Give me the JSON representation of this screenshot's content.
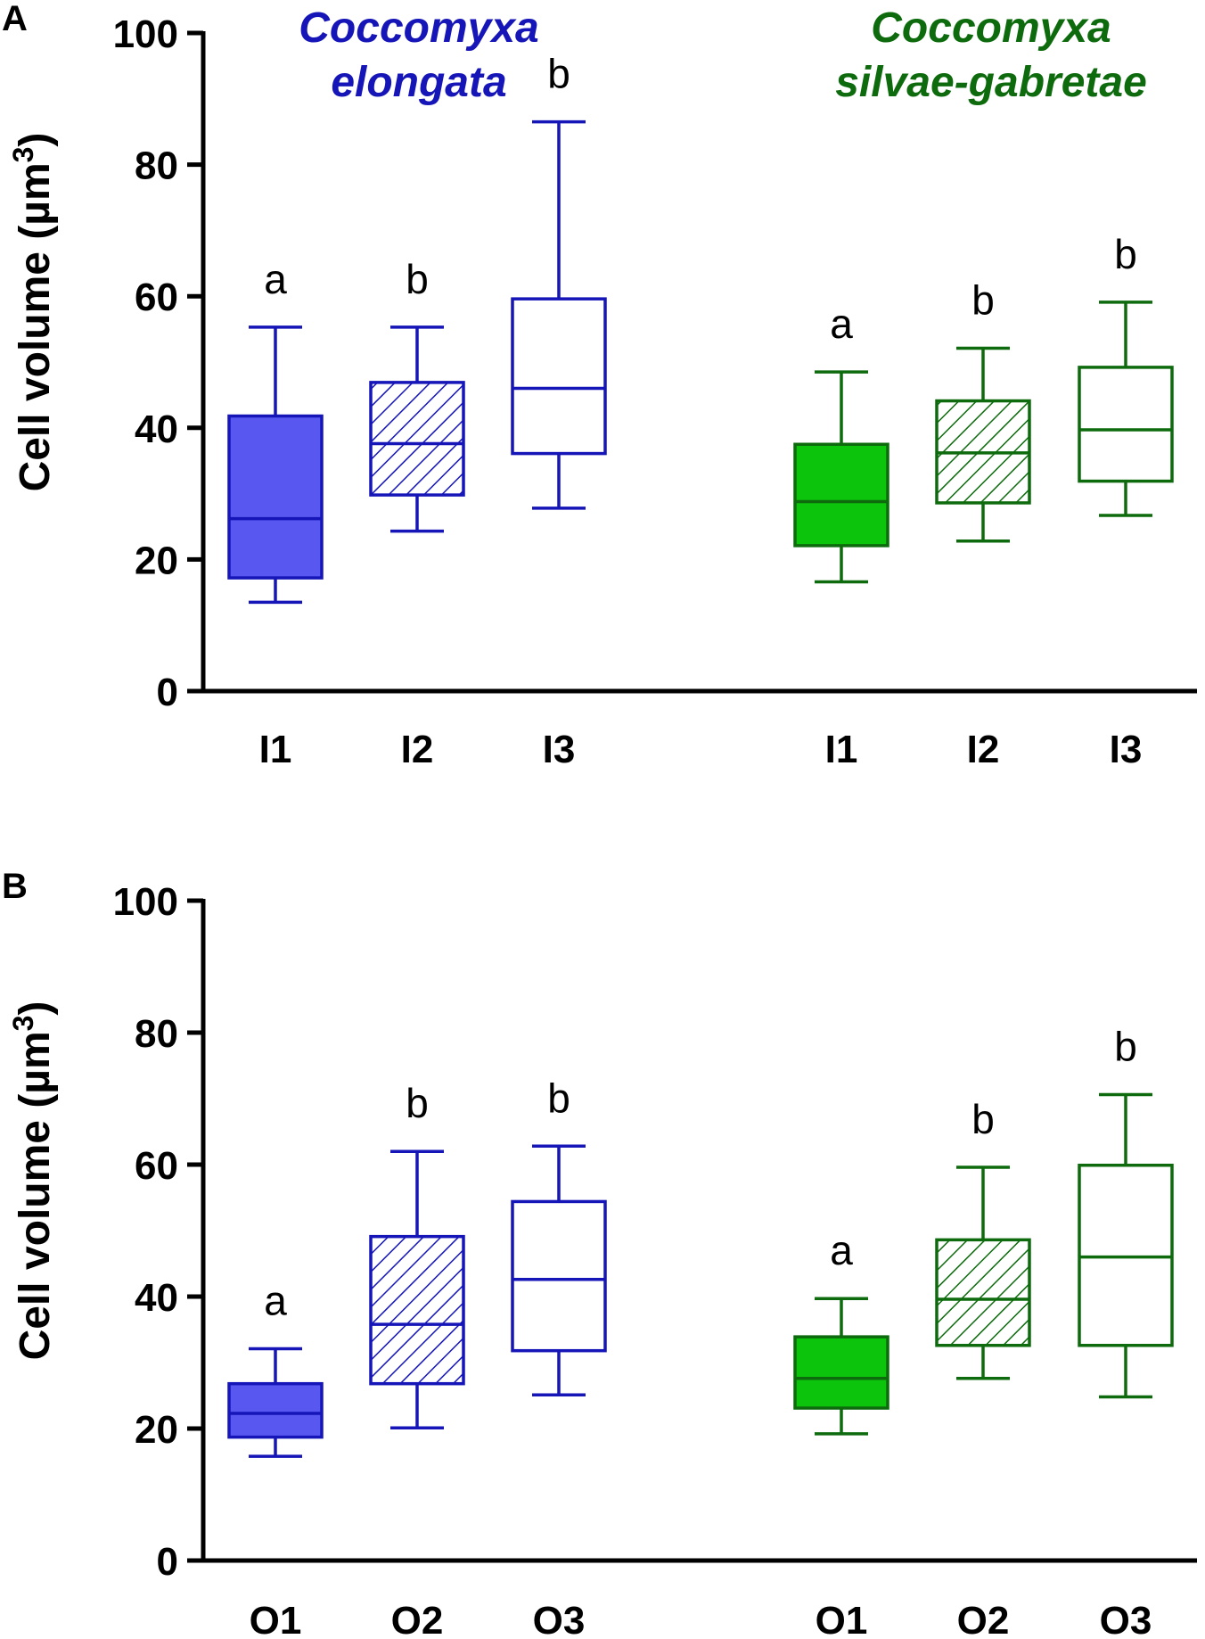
{
  "colors": {
    "elongata": "#1515b8",
    "elongata_fill": "#5858f0",
    "silvae": "#0d6b0d",
    "silvae_fill": "#0cc40c",
    "axis": "#000000"
  },
  "species": {
    "elongata": {
      "line1": "Coccomyxa",
      "line2": "elongata"
    },
    "silvae": {
      "line1": "Coccomyxa",
      "line2": "silvae-gabretae"
    }
  },
  "chart_data": [
    {
      "type": "box",
      "panel": "A",
      "ylabel": "Cell volume (µm",
      "ylabel_sup": "3",
      "ylabel_close": ")",
      "ylim": [
        0,
        100
      ],
      "yticks": [
        0,
        20,
        40,
        60,
        80,
        100
      ],
      "groups": [
        {
          "species": "Coccomyxa elongata",
          "category": "I1",
          "style": "solid",
          "whisker_low": 13.5,
          "q1": 17.2,
          "median": 26.2,
          "q3": 41.8,
          "whisker_high": 55.3,
          "sig": "a"
        },
        {
          "species": "Coccomyxa elongata",
          "category": "I2",
          "style": "hatched",
          "whisker_low": 24.3,
          "q1": 29.8,
          "median": 37.6,
          "q3": 46.9,
          "whisker_high": 55.3,
          "sig": "b"
        },
        {
          "species": "Coccomyxa elongata",
          "category": "I3",
          "style": "open",
          "whisker_low": 27.8,
          "q1": 36.1,
          "median": 46.0,
          "q3": 59.6,
          "whisker_high": 86.5,
          "sig": "b"
        },
        {
          "species": "Coccomyxa silvae-gabretae",
          "category": "I1",
          "style": "solid",
          "whisker_low": 16.6,
          "q1": 22.1,
          "median": 28.8,
          "q3": 37.5,
          "whisker_high": 48.5,
          "sig": "a"
        },
        {
          "species": "Coccomyxa silvae-gabretae",
          "category": "I2",
          "style": "hatched",
          "whisker_low": 22.8,
          "q1": 28.6,
          "median": 36.2,
          "q3": 44.1,
          "whisker_high": 52.1,
          "sig": "b"
        },
        {
          "species": "Coccomyxa silvae-gabretae",
          "category": "I3",
          "style": "open",
          "whisker_low": 26.7,
          "q1": 31.9,
          "median": 39.7,
          "q3": 49.2,
          "whisker_high": 59.1,
          "sig": "b"
        }
      ]
    },
    {
      "type": "box",
      "panel": "B",
      "ylabel": "Cell volume (µm",
      "ylabel_sup": "3",
      "ylabel_close": ")",
      "ylim": [
        0,
        100
      ],
      "yticks": [
        0,
        20,
        40,
        60,
        80,
        100
      ],
      "groups": [
        {
          "species": "Coccomyxa elongata",
          "category": "O1",
          "style": "solid",
          "whisker_low": 15.8,
          "q1": 18.7,
          "median": 22.3,
          "q3": 26.8,
          "whisker_high": 32.1,
          "sig": "a"
        },
        {
          "species": "Coccomyxa elongata",
          "category": "O2",
          "style": "hatched",
          "whisker_low": 20.1,
          "q1": 26.8,
          "median": 35.8,
          "q3": 49.1,
          "whisker_high": 62.0,
          "sig": "b"
        },
        {
          "species": "Coccomyxa elongata",
          "category": "O3",
          "style": "open",
          "whisker_low": 25.1,
          "q1": 31.8,
          "median": 42.6,
          "q3": 54.4,
          "whisker_high": 62.8,
          "sig": "b"
        },
        {
          "species": "Coccomyxa silvae-gabretae",
          "category": "O1",
          "style": "solid",
          "whisker_low": 19.2,
          "q1": 23.1,
          "median": 27.6,
          "q3": 33.9,
          "whisker_high": 39.7,
          "sig": "a"
        },
        {
          "species": "Coccomyxa silvae-gabretae",
          "category": "O2",
          "style": "hatched",
          "whisker_low": 27.6,
          "q1": 32.6,
          "median": 39.6,
          "q3": 48.6,
          "whisker_high": 59.6,
          "sig": "b"
        },
        {
          "species": "Coccomyxa silvae-gabretae",
          "category": "O3",
          "style": "open",
          "whisker_low": 24.8,
          "q1": 32.6,
          "median": 46.0,
          "q3": 59.9,
          "whisker_high": 70.6,
          "sig": "b"
        }
      ]
    }
  ]
}
